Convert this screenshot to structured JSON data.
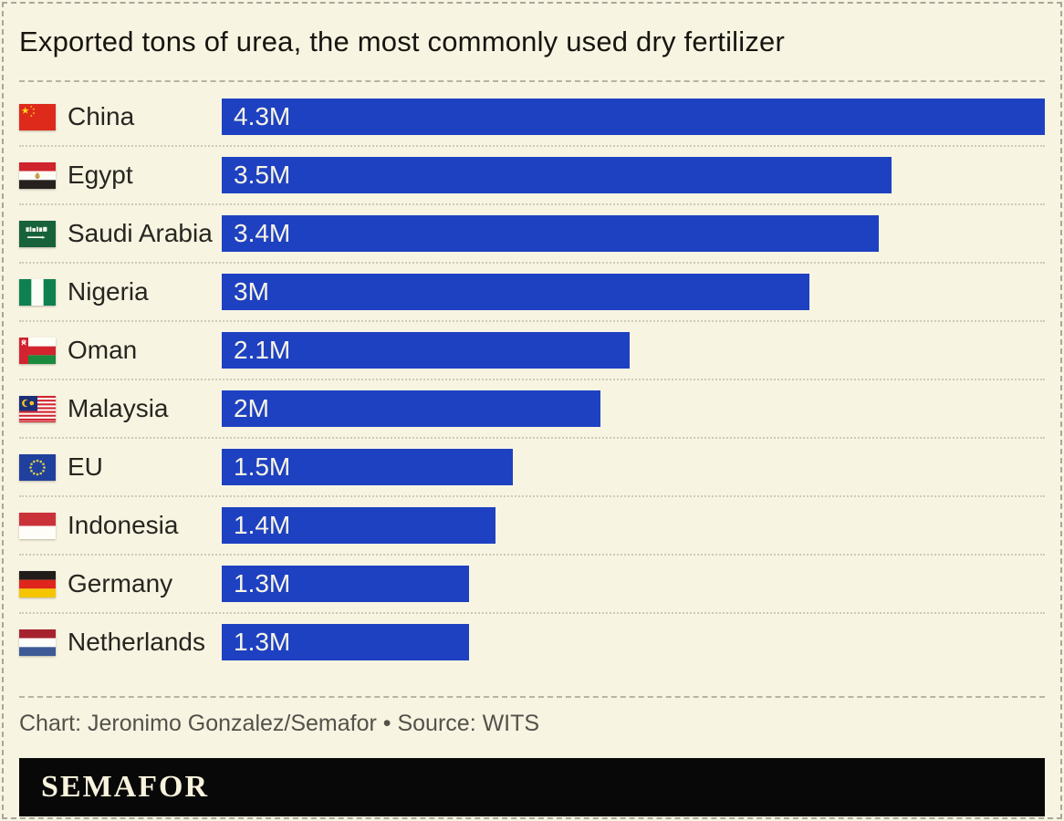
{
  "theme": {
    "background": "#f8f4e2",
    "bar_color": "#1e41c2",
    "title_color": "#16150f",
    "label_color": "#26251f",
    "muted_text_color": "#53524a",
    "logo_background": "#080808",
    "logo_text_color": "#f8f3dd"
  },
  "header": {
    "title": "Exported tons of urea, the most commonly used dry fertilizer"
  },
  "chart_data": {
    "type": "bar",
    "orientation": "horizontal",
    "title": "Exported tons of urea, the most commonly used dry fertilizer",
    "xlabel": "",
    "ylabel": "",
    "value_unit": "tons (millions)",
    "xlim": [
      0,
      4.3
    ],
    "grid": false,
    "legend": false,
    "categories": [
      "China",
      "Egypt",
      "Saudi Arabia",
      "Nigeria",
      "Oman",
      "Malaysia",
      "EU",
      "Indonesia",
      "Germany",
      "Netherlands"
    ],
    "values": [
      4.3,
      3.5,
      3.43,
      3.07,
      2.13,
      1.98,
      1.52,
      1.43,
      1.29,
      1.29
    ],
    "value_labels": [
      "4.3M",
      "3.5M",
      "3.4M",
      "3M",
      "2.1M",
      "2M",
      "1.5M",
      "1.4M",
      "1.3M",
      "1.3M"
    ],
    "rows": [
      {
        "country": "China",
        "flag": "china",
        "value": 4.3,
        "label": "4.3M"
      },
      {
        "country": "Egypt",
        "flag": "egypt",
        "value": 3.5,
        "label": "3.5M"
      },
      {
        "country": "Saudi Arabia",
        "flag": "saudi-arabia",
        "value": 3.43,
        "label": "3.4M"
      },
      {
        "country": "Nigeria",
        "flag": "nigeria",
        "value": 3.07,
        "label": "3M"
      },
      {
        "country": "Oman",
        "flag": "oman",
        "value": 2.13,
        "label": "2.1M"
      },
      {
        "country": "Malaysia",
        "flag": "malaysia",
        "value": 1.98,
        "label": "2M"
      },
      {
        "country": "EU",
        "flag": "eu",
        "value": 1.52,
        "label": "1.5M"
      },
      {
        "country": "Indonesia",
        "flag": "indonesia",
        "value": 1.43,
        "label": "1.4M"
      },
      {
        "country": "Germany",
        "flag": "germany",
        "value": 1.29,
        "label": "1.3M"
      },
      {
        "country": "Netherlands",
        "flag": "netherlands",
        "value": 1.29,
        "label": "1.3M"
      }
    ]
  },
  "footer": {
    "attribution": "Chart: Jeronimo Gonzalez/Semafor • Source: WITS",
    "logo": "SEMAFOR"
  }
}
